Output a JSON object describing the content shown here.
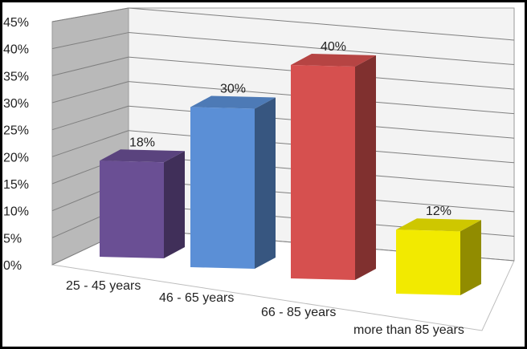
{
  "chart_data": {
    "type": "bar",
    "categories": [
      "25 - 45 years",
      "46 - 65 years",
      "66 - 85 years",
      "more than 85 years"
    ],
    "values": [
      18,
      30,
      40,
      12
    ],
    "data_labels": [
      "18%",
      "30%",
      "40%",
      "12%"
    ],
    "ylim": [
      0,
      45
    ],
    "yticks": [
      "0%",
      "5%",
      "10%",
      "15%",
      "20%",
      "25%",
      "30%",
      "35%",
      "40%",
      "45%"
    ],
    "grid": true,
    "style": "3d-column",
    "colors": [
      "#6a4f94",
      "#5b8fd6",
      "#d6504f",
      "#f2ea00"
    ]
  }
}
